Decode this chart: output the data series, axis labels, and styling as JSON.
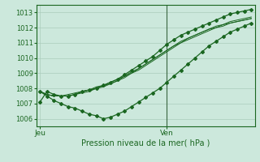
{
  "title": "Pression niveau de la mer( hPa )",
  "bg_color": "#cce8dc",
  "grid_color": "#aaccbb",
  "line_color": "#1a6620",
  "text_color": "#1a6620",
  "ylim": [
    1005.5,
    1013.5
  ],
  "yticks": [
    1006,
    1007,
    1008,
    1009,
    1010,
    1011,
    1012,
    1013
  ],
  "xtick_labels": [
    "Jeu",
    "Ven"
  ],
  "xtick_positions": [
    0,
    18
  ],
  "vline_x": 18,
  "n_points": 31,
  "series": [
    [
      1007.1,
      1007.8,
      1007.6,
      1007.5,
      1007.5,
      1007.6,
      1007.8,
      1007.9,
      1008.0,
      1008.2,
      1008.4,
      1008.6,
      1008.9,
      1009.2,
      1009.5,
      1009.8,
      1010.1,
      1010.5,
      1010.9,
      1011.2,
      1011.5,
      1011.7,
      1011.9,
      1012.1,
      1012.3,
      1012.5,
      1012.7,
      1012.9,
      1013.0,
      1013.1,
      1013.2
    ],
    [
      1007.8,
      1007.5,
      1007.2,
      1007.0,
      1006.8,
      1006.7,
      1006.5,
      1006.3,
      1006.2,
      1006.0,
      1006.1,
      1006.3,
      1006.5,
      1006.8,
      1007.1,
      1007.4,
      1007.7,
      1008.0,
      1008.4,
      1008.8,
      1009.2,
      1009.6,
      1010.0,
      1010.4,
      1010.8,
      1011.1,
      1011.4,
      1011.7,
      1011.9,
      1012.1,
      1012.3
    ],
    [
      1007.8,
      1007.6,
      1007.5,
      1007.5,
      1007.5,
      1007.6,
      1007.7,
      1007.8,
      1008.0,
      1008.1,
      1008.3,
      1008.5,
      1008.7,
      1009.0,
      1009.2,
      1009.5,
      1009.8,
      1010.1,
      1010.4,
      1010.7,
      1011.0,
      1011.3,
      1011.5,
      1011.7,
      1011.9,
      1012.1,
      1012.2,
      1012.4,
      1012.5,
      1012.6,
      1012.7
    ],
    [
      1007.8,
      1007.6,
      1007.5,
      1007.5,
      1007.6,
      1007.7,
      1007.8,
      1007.9,
      1008.1,
      1008.2,
      1008.4,
      1008.6,
      1008.8,
      1009.1,
      1009.3,
      1009.6,
      1009.9,
      1010.2,
      1010.5,
      1010.8,
      1011.1,
      1011.3,
      1011.5,
      1011.7,
      1011.9,
      1012.0,
      1012.2,
      1012.3,
      1012.4,
      1012.5,
      1012.6
    ],
    [
      1007.8,
      1007.6,
      1007.5,
      1007.5,
      1007.5,
      1007.6,
      1007.8,
      1007.9,
      1008.0,
      1008.2,
      1008.3,
      1008.5,
      1008.8,
      1009.0,
      1009.3,
      1009.6,
      1009.9,
      1010.2,
      1010.5,
      1010.8,
      1011.0,
      1011.2,
      1011.4,
      1011.6,
      1011.8,
      1012.0,
      1012.1,
      1012.3,
      1012.4,
      1012.5,
      1012.6
    ]
  ],
  "marked_series": [
    0,
    1
  ],
  "xlim": [
    -0.5,
    30.5
  ]
}
